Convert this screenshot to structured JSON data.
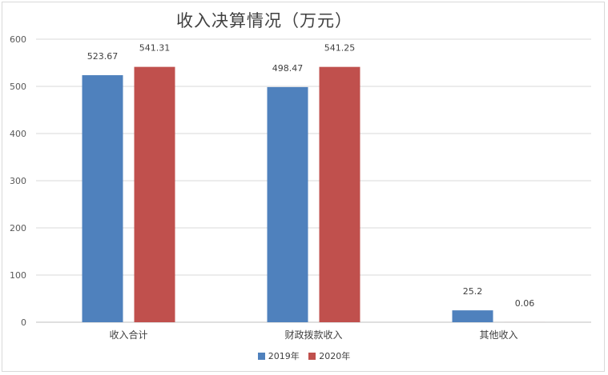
{
  "chart_data": {
    "type": "bar",
    "title": "收入决算情况（万元）",
    "categories": [
      "收入合计",
      "财政拨款收入",
      "其他收入"
    ],
    "series": [
      {
        "name": "2019年",
        "values": [
          523.67,
          498.47,
          25.2
        ],
        "labels": [
          "523.67",
          "498.47",
          "25.2"
        ],
        "color": "#4f81bd"
      },
      {
        "name": "2020年",
        "values": [
          541.31,
          541.25,
          0.06
        ],
        "labels": [
          "541.31",
          "541.25",
          "0.06"
        ],
        "color": "#c0504d"
      }
    ],
    "ylim": [
      0,
      600
    ],
    "yticks": [
      0,
      100,
      200,
      300,
      400,
      500,
      600
    ],
    "grid": true,
    "legend": "bottom"
  }
}
